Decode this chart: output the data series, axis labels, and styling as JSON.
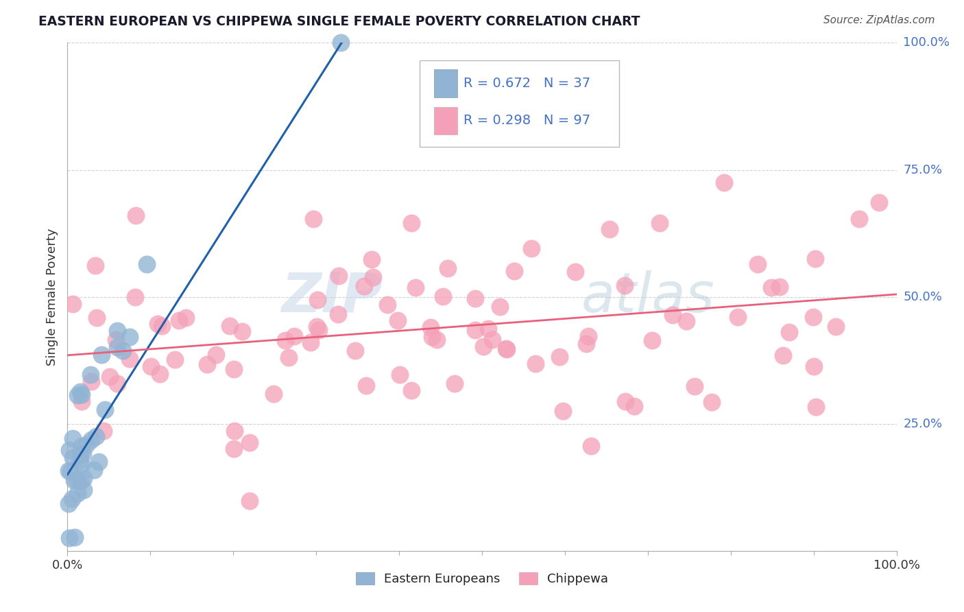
{
  "title": "EASTERN EUROPEAN VS CHIPPEWA SINGLE FEMALE POVERTY CORRELATION CHART",
  "source": "Source: ZipAtlas.com",
  "ylabel": "Single Female Poverty",
  "ytick_labels": [
    "25.0%",
    "50.0%",
    "75.0%",
    "100.0%"
  ],
  "ytick_values": [
    0.25,
    0.5,
    0.75,
    1.0
  ],
  "watermark_part1": "ZIP",
  "watermark_part2": "atlas",
  "legend_R1": "R = 0.672",
  "legend_N1": "N = 37",
  "legend_R2": "R = 0.298",
  "legend_N2": "N = 97",
  "eastern_european_color": "#92b4d4",
  "chippewa_color": "#f4a0b8",
  "eastern_european_line_color": "#2060a8",
  "chippewa_line_color": "#e8607a",
  "background_color": "#ffffff",
  "grid_color": "#cccccc",
  "title_color": "#1a1a2e",
  "source_color": "#555555",
  "axis_label_color": "#333333",
  "tick_color": "#4472c4",
  "R_ee": 0.672,
  "N_ee": 37,
  "R_ch": 0.298,
  "N_ch": 97,
  "xlim": [
    0.0,
    1.0
  ],
  "ylim": [
    0.0,
    1.0
  ]
}
